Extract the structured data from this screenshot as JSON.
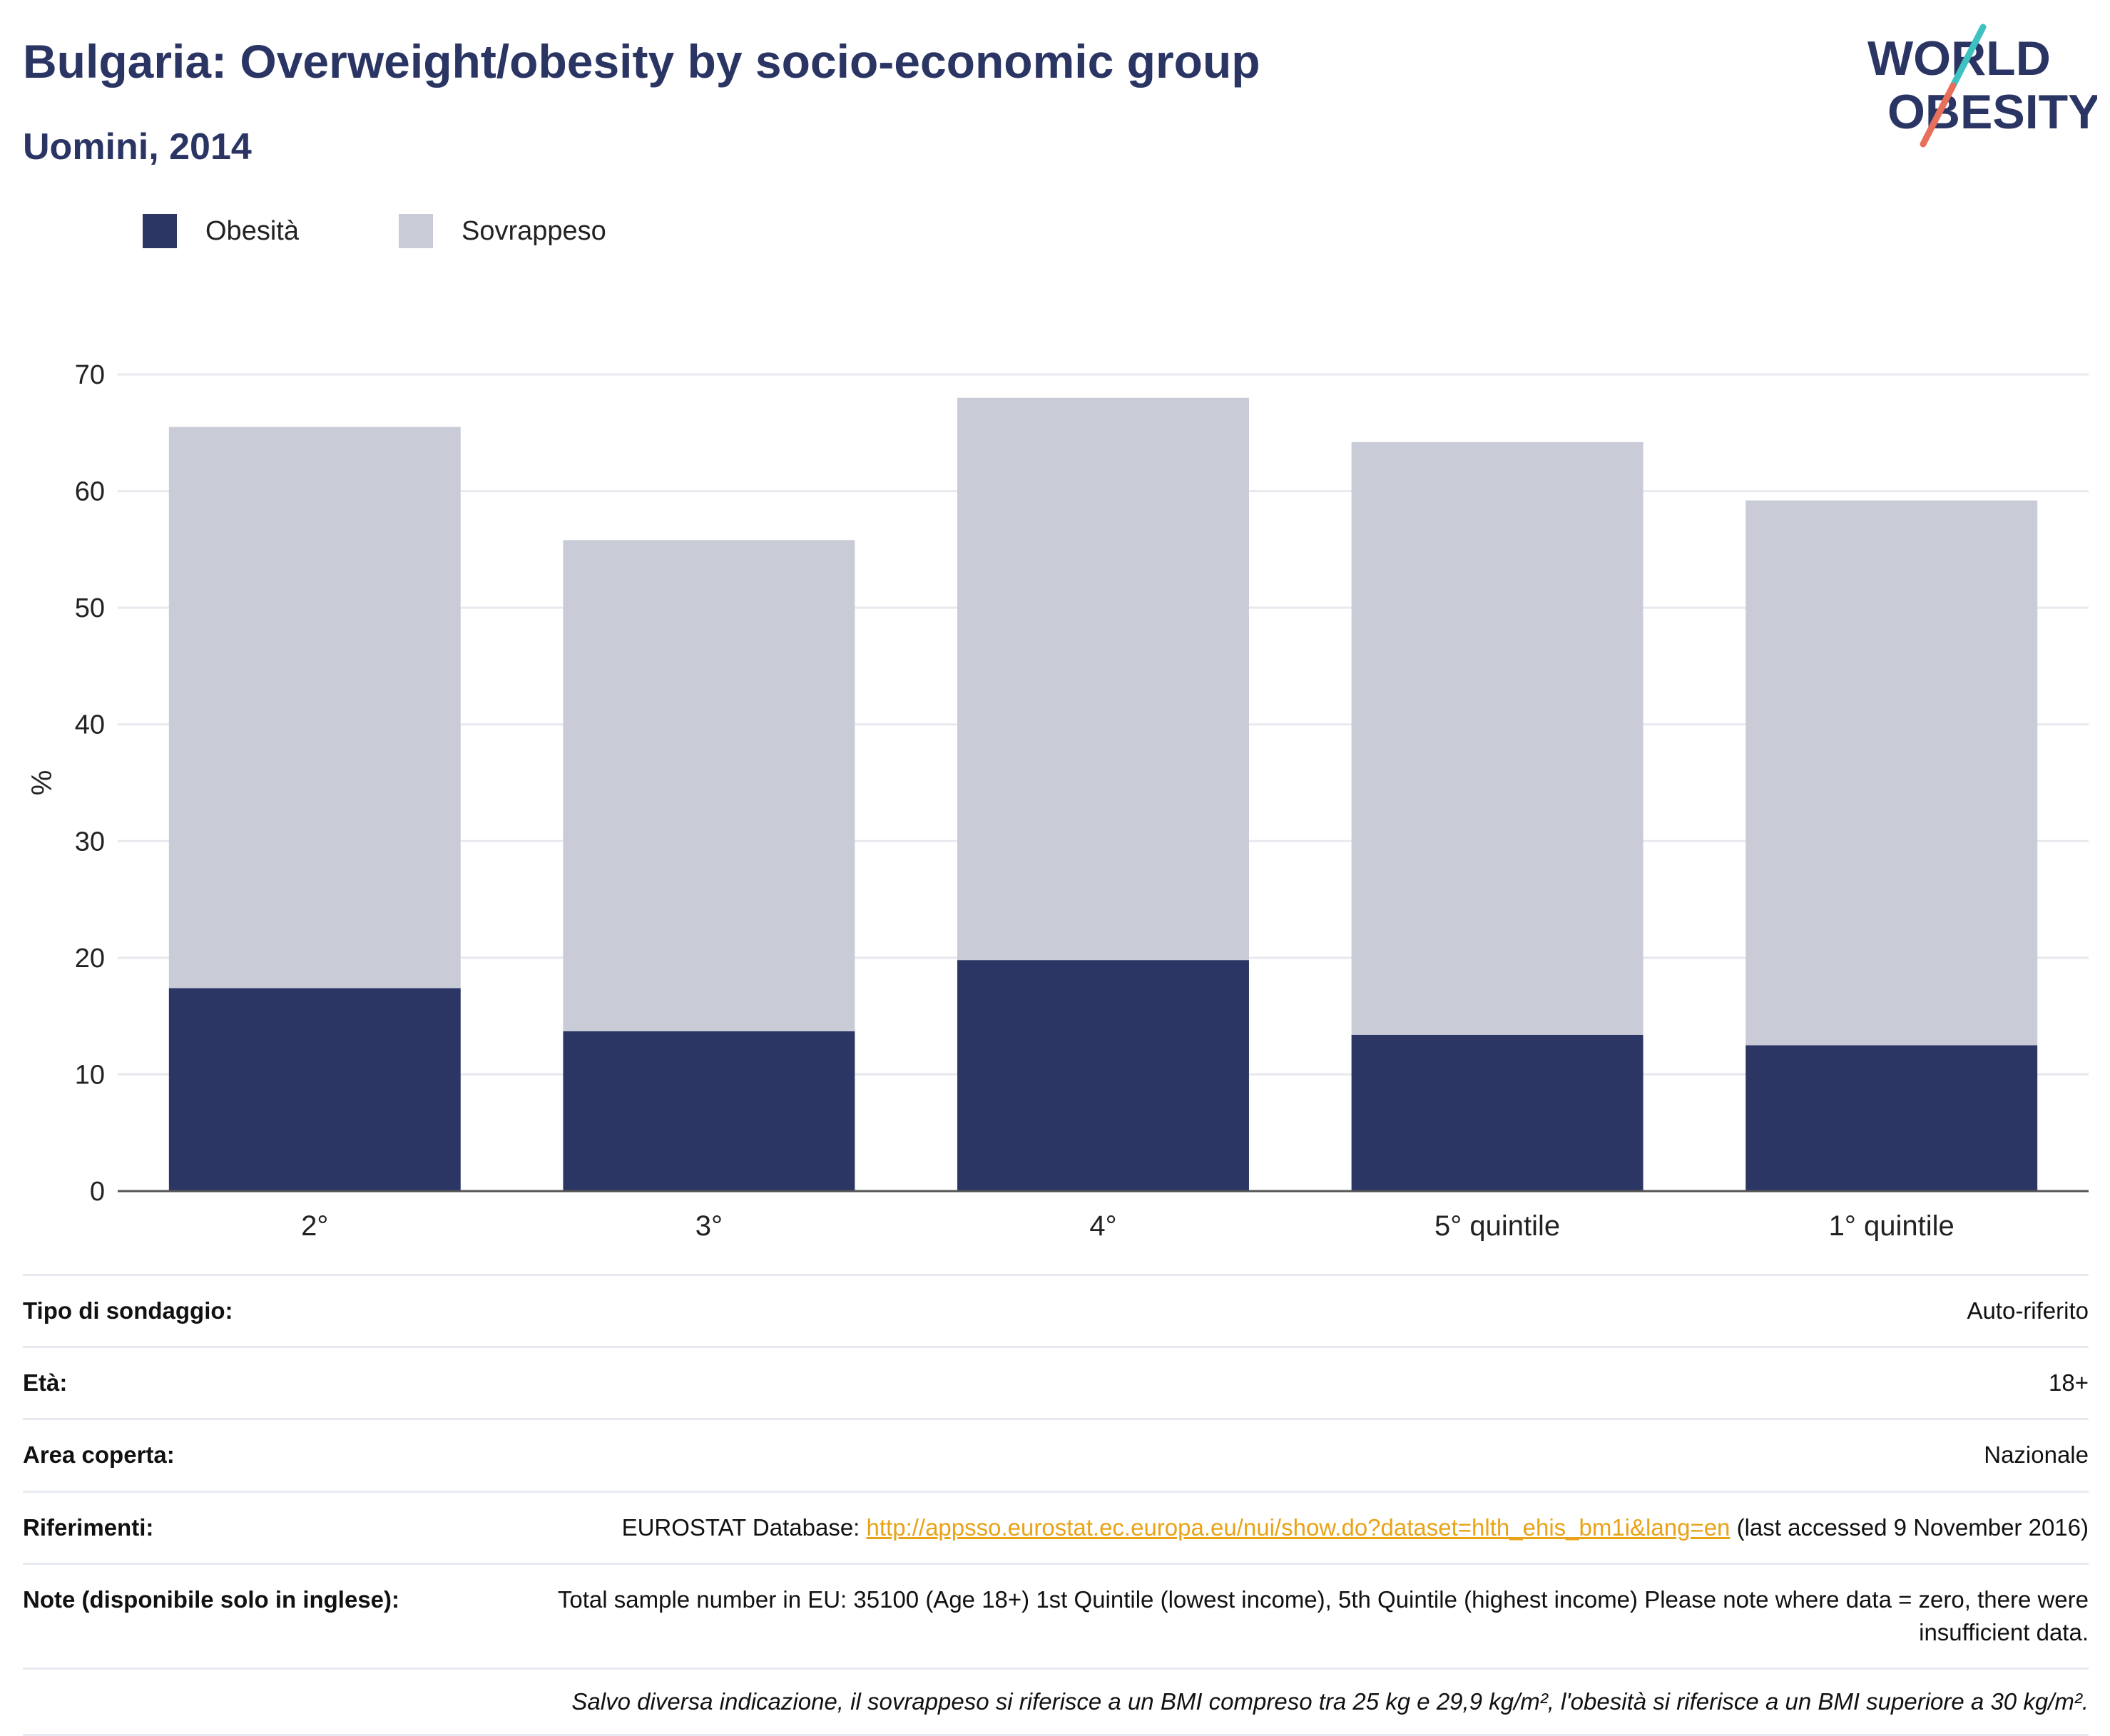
{
  "title": "Bulgaria: Overweight/obesity by socio-economic group",
  "subtitle": "Uomini, 2014",
  "logo": {
    "line1": "WORLD",
    "line2": "OBESITY"
  },
  "legend": [
    {
      "label": "Obesità",
      "color": "#2b3664"
    },
    {
      "label": "Sovrappeso",
      "color": "#c9cbd7"
    }
  ],
  "chart_data": {
    "type": "bar",
    "stacked": true,
    "categories": [
      "2°",
      "3°",
      "4°",
      "5° quintile",
      "1° quintile"
    ],
    "series": [
      {
        "name": "Obesità",
        "values": [
          17.4,
          13.7,
          19.8,
          13.4,
          12.5
        ],
        "color": "#2b3664"
      },
      {
        "name": "Sovrappeso",
        "values": [
          48.1,
          42.1,
          48.2,
          50.8,
          46.7
        ],
        "color": "#c9cbd7"
      }
    ],
    "totals": [
      65.5,
      55.8,
      68.0,
      64.2,
      59.2
    ],
    "ylabel": "%",
    "ylim": [
      0,
      70
    ],
    "yticks": [
      0,
      10,
      20,
      30,
      40,
      50,
      60,
      70
    ],
    "grid": true,
    "legend_position": "top-left"
  },
  "info": {
    "survey_label": "Tipo di sondaggio:",
    "survey_value": "Auto-riferito",
    "age_label": "Età:",
    "age_value": "18+",
    "area_label": "Area coperta:",
    "area_value": "Nazionale",
    "refs_label": "Riferimenti:",
    "refs_prefix": "EUROSTAT Database: ",
    "refs_link": "http://appsso.eurostat.ec.europa.eu/nui/show.do?dataset=hlth_ehis_bm1i&lang=en",
    "refs_suffix": " (last accessed 9 November 2016)",
    "notes_label": "Note (disponibile solo in inglese):",
    "notes_value": "Total sample number in EU: 35100 (Age 18+) 1st Quintile (lowest income), 5th Quintile (highest income) Please note where data = zero, there were insufficient data.",
    "footnote": "Salvo diversa indicazione, il sovrappeso si riferisce a un BMI compreso tra 25 kg e 29,9 kg/m², l'obesità si riferisce a un BMI superiore a 30 kg/m²."
  }
}
